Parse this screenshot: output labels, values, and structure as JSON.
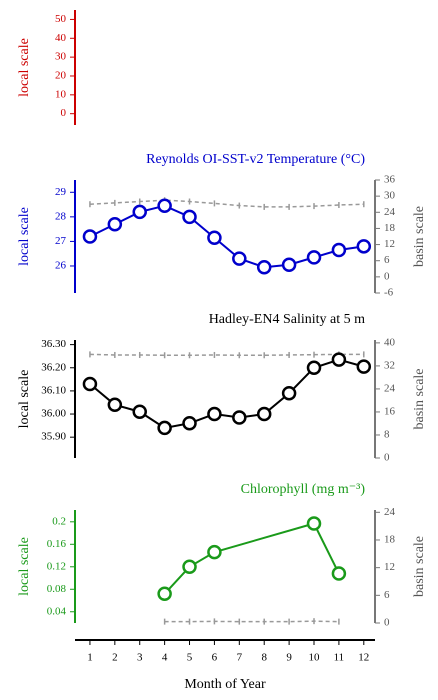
{
  "chart_data": [
    {
      "type": "line",
      "ylabel": "local scale",
      "color": "#cc0000",
      "ylim": [
        -6,
        55
      ],
      "yticks": [
        0,
        10,
        20,
        30,
        40,
        50
      ]
    },
    {
      "type": "line",
      "title": "Reynolds OI-SST-v2 Temperature (°C)",
      "ylabel": "local scale",
      "y2label": "basin scale",
      "color": "#0000cc",
      "ylim": [
        24.9,
        29.5
      ],
      "yticks": [
        26,
        27,
        28,
        29
      ],
      "y2lim": [
        -6,
        36
      ],
      "y2ticks": [
        -6,
        0,
        6,
        12,
        18,
        24,
        30,
        36
      ],
      "series": [
        {
          "x": [
            1,
            2,
            3,
            4,
            5,
            6,
            7,
            8,
            9,
            10,
            11,
            12
          ],
          "values": [
            27.2,
            27.7,
            28.2,
            28.45,
            28.0,
            27.15,
            26.3,
            25.95,
            26.05,
            26.35,
            26.65,
            26.8
          ],
          "color": "#0000cc"
        },
        {
          "x": [
            1,
            2,
            3,
            4,
            5,
            6,
            7,
            8,
            9,
            10,
            11,
            12
          ],
          "values": [
            27,
            27.5,
            28,
            28.5,
            28,
            27.3,
            26.5,
            26,
            26,
            26.3,
            26.7,
            27
          ],
          "color": "#999999",
          "axis": "y2"
        }
      ]
    },
    {
      "type": "line",
      "title": "Hadley-EN4 Salinity at 5 m",
      "ylabel": "local scale",
      "y2label": "basin scale",
      "color": "#000000",
      "ylim": [
        35.81,
        36.32
      ],
      "yticks": [
        {
          "value": 35.9,
          "label": "35.90"
        },
        {
          "value": 36.0,
          "label": "36.00"
        },
        {
          "value": 36.1,
          "label": "36.10"
        },
        {
          "value": 36.2,
          "label": "36.20"
        },
        {
          "value": 36.3,
          "label": "36.30"
        }
      ],
      "y2lim": [
        0,
        41
      ],
      "y2ticks": [
        0,
        8,
        16,
        24,
        32,
        40
      ],
      "series": [
        {
          "x": [
            1,
            2,
            3,
            4,
            5,
            6,
            7,
            8,
            9,
            10,
            11,
            12
          ],
          "values": [
            36.13,
            36.04,
            36.01,
            35.94,
            35.96,
            36.0,
            35.985,
            36.0,
            36.09,
            36.2,
            36.235,
            36.205
          ],
          "color": "#000000"
        },
        {
          "x": [
            1,
            2,
            3,
            4,
            5,
            6,
            7,
            8,
            9,
            10,
            11,
            12
          ],
          "values": [
            36,
            35.8,
            35.8,
            35.7,
            35.7,
            35.8,
            35.7,
            35.7,
            35.8,
            35.9,
            36,
            36
          ],
          "color": "#999999",
          "axis": "y2"
        }
      ]
    },
    {
      "type": "line",
      "title": "Chlorophyll (mg m⁻³)",
      "ylabel": "local scale",
      "y2label": "basin scale",
      "color": "#1a9a1a",
      "ylim": [
        0.02,
        0.221
      ],
      "yticks": [
        0.04,
        0.08,
        0.12,
        0.16,
        0.2
      ],
      "y2lim": [
        0,
        24.5
      ],
      "y2ticks": [
        0,
        6,
        12,
        18,
        24
      ],
      "series": [
        {
          "x": [
            4,
            5,
            6,
            10,
            11
          ],
          "values": [
            0.072,
            0.12,
            0.146,
            0.197,
            0.108
          ],
          "color": "#1a9a1a"
        },
        {
          "x": [
            4,
            5,
            6,
            7,
            8,
            9,
            10,
            11
          ],
          "values": [
            0.3,
            0.3,
            0.35,
            0.3,
            0.3,
            0.3,
            0.4,
            0.3
          ],
          "color": "#999999",
          "axis": "y2"
        }
      ]
    }
  ],
  "x_axis": {
    "label": "Month of Year",
    "xlim": [
      0.4,
      12.45
    ],
    "xticks": [
      1,
      2,
      3,
      4,
      5,
      6,
      7,
      8,
      9,
      10,
      11,
      12
    ]
  }
}
